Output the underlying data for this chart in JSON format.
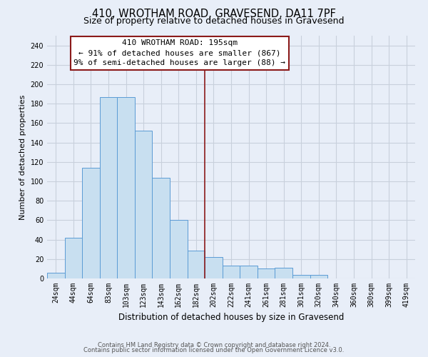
{
  "title": "410, WROTHAM ROAD, GRAVESEND, DA11 7PF",
  "subtitle": "Size of property relative to detached houses in Gravesend",
  "xlabel": "Distribution of detached houses by size in Gravesend",
  "ylabel": "Number of detached properties",
  "bar_labels": [
    "24sqm",
    "44sqm",
    "64sqm",
    "83sqm",
    "103sqm",
    "123sqm",
    "143sqm",
    "162sqm",
    "182sqm",
    "202sqm",
    "222sqm",
    "241sqm",
    "261sqm",
    "281sqm",
    "301sqm",
    "320sqm",
    "340sqm",
    "360sqm",
    "380sqm",
    "399sqm",
    "419sqm"
  ],
  "bar_values": [
    6,
    42,
    114,
    187,
    187,
    152,
    104,
    60,
    29,
    22,
    13,
    13,
    10,
    11,
    4,
    4,
    0,
    0,
    0,
    0,
    0
  ],
  "bar_color": "#c8dff0",
  "bar_edge_color": "#5b9bd5",
  "vline_color": "#8b1a1a",
  "ylim": [
    0,
    250
  ],
  "yticks": [
    0,
    20,
    40,
    60,
    80,
    100,
    120,
    140,
    160,
    180,
    200,
    220,
    240
  ],
  "annotation_title": "410 WROTHAM ROAD: 195sqm",
  "annotation_line1": "← 91% of detached houses are smaller (867)",
  "annotation_line2": "9% of semi-detached houses are larger (88) →",
  "annotation_box_color": "#ffffff",
  "annotation_box_edge": "#8b1a1a",
  "footer1": "Contains HM Land Registry data © Crown copyright and database right 2024.",
  "footer2": "Contains public sector information licensed under the Open Government Licence v3.0.",
  "bg_color": "#e8eef8",
  "grid_color": "#c8d0dc",
  "title_fontsize": 10.5,
  "subtitle_fontsize": 9,
  "axis_label_fontsize": 8.5,
  "ylabel_fontsize": 8,
  "tick_fontsize": 7,
  "footer_fontsize": 6,
  "annotation_fontsize": 8,
  "vline_index": 9
}
